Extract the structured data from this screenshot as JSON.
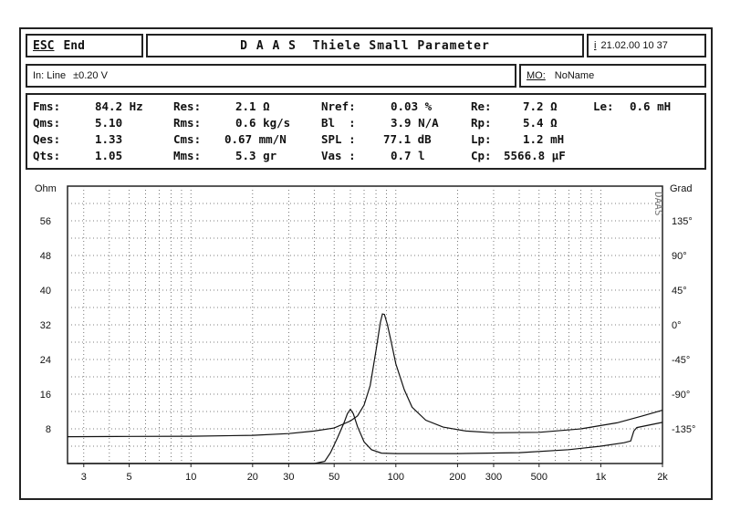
{
  "header": {
    "esc_label": "ESC",
    "end_label": "End",
    "title": "D A A S  Thiele Small Parameter",
    "info_key": "i",
    "datetime": "21.02.00 10 37"
  },
  "input_bar": {
    "input_label": "In: Line",
    "level": "±0.20 V",
    "mo_key": "MO:",
    "mo_value": "NoName"
  },
  "params": [
    {
      "label": "Fms:",
      "value": "84.2 Hz"
    },
    {
      "label": "Qms:",
      "value": "5.10"
    },
    {
      "label": "Qes:",
      "value": "1.33"
    },
    {
      "label": "Qts:",
      "value": "1.05"
    },
    {
      "label": "Res:",
      "value": "2.1 Ω"
    },
    {
      "label": "Rms:",
      "value": "0.6 kg/s"
    },
    {
      "label": "Cms:",
      "value": "0.67 mm/N"
    },
    {
      "label": "Mms:",
      "value": "5.3 gr"
    },
    {
      "label": "Nref:",
      "value": "0.03 %"
    },
    {
      "label": "Bl  :",
      "value": "3.9 N/A"
    },
    {
      "label": "SPL :",
      "value": "77.1 dB"
    },
    {
      "label": "Vas :",
      "value": "0.7 l"
    },
    {
      "label": "Re:",
      "value": "7.2 Ω"
    },
    {
      "label": "Rp:",
      "value": "5.4 Ω"
    },
    {
      "label": "Lp:",
      "value": "1.2 mH"
    },
    {
      "label": "Cp:",
      "value": "5566.8 µF"
    },
    {
      "label": "Le:",
      "value": "0.6 mH"
    }
  ],
  "chart_data": {
    "type": "line",
    "left_unit": "Ohm",
    "right_unit": "Grad",
    "watermark": "DAAS",
    "x_scale": "log",
    "xlim": [
      2.5,
      2000
    ],
    "x_ticks": [
      {
        "v": 3,
        "label": "3"
      },
      {
        "v": 5,
        "label": "5"
      },
      {
        "v": 10,
        "label": "10"
      },
      {
        "v": 20,
        "label": "20"
      },
      {
        "v": 30,
        "label": "30"
      },
      {
        "v": 50,
        "label": "50"
      },
      {
        "v": 100,
        "label": "100"
      },
      {
        "v": 200,
        "label": "200"
      },
      {
        "v": 300,
        "label": "300"
      },
      {
        "v": 500,
        "label": "500"
      },
      {
        "v": 1000,
        "label": "1k"
      },
      {
        "v": 2000,
        "label": "2k"
      }
    ],
    "ylim_left": [
      0,
      64
    ],
    "y_ticks_left": [
      {
        "v": 8,
        "label": "8"
      },
      {
        "v": 16,
        "label": "16"
      },
      {
        "v": 24,
        "label": "24"
      },
      {
        "v": 32,
        "label": "32"
      },
      {
        "v": 40,
        "label": "40"
      },
      {
        "v": 48,
        "label": "48"
      },
      {
        "v": 56,
        "label": "56"
      }
    ],
    "y_ticks_right": [
      {
        "v": 8,
        "label": "-135°"
      },
      {
        "v": 16,
        "label": "-90°"
      },
      {
        "v": 24,
        "label": "-45°"
      },
      {
        "v": 32,
        "label": "0°"
      },
      {
        "v": 40,
        "label": "45°"
      },
      {
        "v": 48,
        "label": "90°"
      },
      {
        "v": 56,
        "label": "135°"
      }
    ],
    "grid": true,
    "series": [
      {
        "points": [
          [
            2.5,
            6.2
          ],
          [
            5,
            6.25
          ],
          [
            10,
            6.3
          ],
          [
            20,
            6.5
          ],
          [
            30,
            6.9
          ],
          [
            40,
            7.5
          ],
          [
            50,
            8.2
          ],
          [
            60,
            9.8
          ],
          [
            65,
            11
          ],
          [
            70,
            13.5
          ],
          [
            75,
            18
          ],
          [
            80,
            26
          ],
          [
            84,
            32.5
          ],
          [
            86,
            34.5
          ],
          [
            88,
            34.4
          ],
          [
            91,
            32
          ],
          [
            95,
            28
          ],
          [
            100,
            23
          ],
          [
            110,
            17
          ],
          [
            120,
            13
          ],
          [
            140,
            10
          ],
          [
            170,
            8.4
          ],
          [
            220,
            7.5
          ],
          [
            300,
            7.1
          ],
          [
            500,
            7.2
          ],
          [
            800,
            8
          ],
          [
            1200,
            9.4
          ],
          [
            1600,
            11
          ],
          [
            2000,
            12.3
          ]
        ]
      },
      {
        "points": [
          [
            2.5,
            0
          ],
          [
            40,
            0
          ],
          [
            45,
            0.5
          ],
          [
            48,
            2.5
          ],
          [
            52,
            6
          ],
          [
            56,
            9.5
          ],
          [
            58,
            11.5
          ],
          [
            60,
            12.5
          ],
          [
            62,
            11.5
          ],
          [
            65,
            8.5
          ],
          [
            70,
            5
          ],
          [
            76,
            3.2
          ],
          [
            85,
            2.4
          ],
          [
            100,
            2.3
          ],
          [
            200,
            2.3
          ],
          [
            400,
            2.5
          ],
          [
            700,
            3.2
          ],
          [
            1000,
            4
          ],
          [
            1300,
            4.8
          ],
          [
            1400,
            5.2
          ],
          [
            1450,
            7.5
          ],
          [
            1500,
            8.3
          ],
          [
            2000,
            9.5
          ]
        ]
      }
    ]
  }
}
